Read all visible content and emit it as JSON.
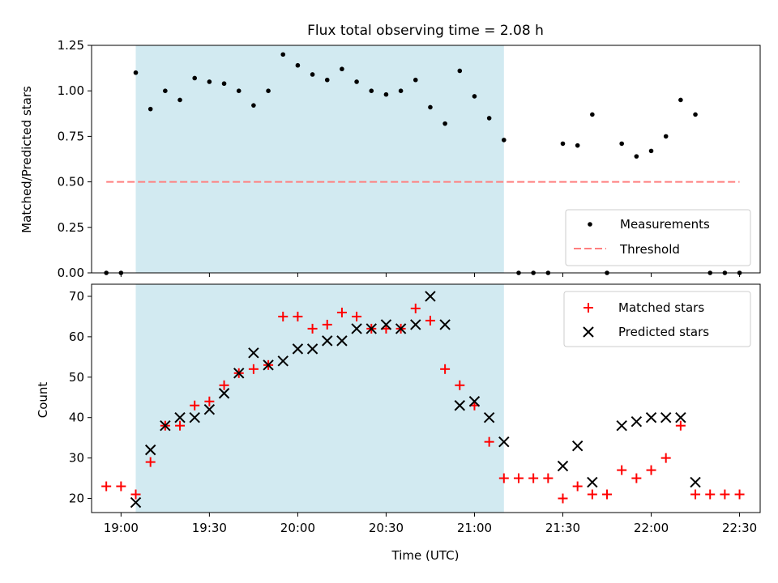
{
  "chart_data": [
    {
      "type": "scatter",
      "title": "Flux total observing time = 2.08 h",
      "ylabel": "Matched/Predicted stars",
      "xlabel": "",
      "xlim": [
        "18:50",
        "22:37"
      ],
      "ylim": [
        0,
        1.25
      ],
      "yticks": [
        "0.00",
        "0.25",
        "0.50",
        "0.75",
        "1.00",
        "1.25"
      ],
      "shaded_span": {
        "start": "19:05",
        "end": "21:10",
        "color": "#add8e6"
      },
      "threshold": {
        "name": "Threshold",
        "value": 0.5,
        "x": [
          "18:55",
          "22:30"
        ],
        "color": "#ff7f7f"
      },
      "series": [
        {
          "name": "Measurements",
          "color": "#000000",
          "x": [
            "18:55",
            "19:00",
            "19:05",
            "19:10",
            "19:15",
            "19:20",
            "19:25",
            "19:30",
            "19:35",
            "19:40",
            "19:45",
            "19:50",
            "19:55",
            "20:00",
            "20:05",
            "20:10",
            "20:15",
            "20:20",
            "20:25",
            "20:30",
            "20:35",
            "20:40",
            "20:45",
            "20:50",
            "20:55",
            "21:00",
            "21:05",
            "21:10",
            "21:15",
            "21:20",
            "21:25",
            "21:30",
            "21:35",
            "21:40",
            "21:45",
            "21:50",
            "21:55",
            "22:00",
            "22:05",
            "22:10",
            "22:15",
            "22:20",
            "22:25",
            "22:30"
          ],
          "y": [
            0,
            0,
            1.1,
            0.9,
            1.0,
            0.95,
            1.07,
            1.05,
            1.04,
            1.0,
            0.92,
            1.0,
            1.2,
            1.14,
            1.09,
            1.06,
            1.12,
            1.05,
            1.0,
            0.98,
            1.0,
            1.06,
            0.91,
            0.82,
            1.11,
            0.97,
            0.85,
            0.73,
            0,
            0,
            0,
            0.71,
            0.7,
            0.87,
            0,
            0.71,
            0.64,
            0.67,
            0.75,
            0.95,
            0.87,
            0,
            0,
            0
          ]
        }
      ],
      "legend": {
        "placement": "lower-right",
        "entries": [
          "Measurements",
          "Threshold"
        ]
      }
    },
    {
      "type": "scatter",
      "title": "",
      "xlabel": "Time (UTC)",
      "ylabel": "Count",
      "xlim": [
        "18:50",
        "22:37"
      ],
      "ylim": [
        16.5,
        73
      ],
      "xticks": [
        "19:00",
        "19:30",
        "20:00",
        "20:30",
        "21:00",
        "21:30",
        "22:00",
        "22:30"
      ],
      "yticks": [
        "20",
        "30",
        "40",
        "50",
        "60",
        "70"
      ],
      "shaded_span": {
        "start": "19:05",
        "end": "21:10",
        "color": "#add8e6"
      },
      "series": [
        {
          "name": "Matched stars",
          "marker": "+",
          "color": "#ff0000",
          "x": [
            "18:55",
            "19:00",
            "19:05",
            "19:10",
            "19:15",
            "19:20",
            "19:25",
            "19:30",
            "19:35",
            "19:40",
            "19:45",
            "19:50",
            "19:55",
            "20:00",
            "20:05",
            "20:10",
            "20:15",
            "20:20",
            "20:25",
            "20:30",
            "20:35",
            "20:40",
            "20:45",
            "20:50",
            "20:55",
            "21:00",
            "21:05",
            "21:10",
            "21:15",
            "21:20",
            "21:25",
            "21:30",
            "21:35",
            "21:40",
            "21:45",
            "21:50",
            "21:55",
            "22:00",
            "22:05",
            "22:10",
            "22:15",
            "22:20",
            "22:25",
            "22:30"
          ],
          "y": [
            23,
            23,
            21,
            29,
            38,
            38,
            43,
            44,
            48,
            51,
            52,
            53,
            65,
            65,
            62,
            63,
            66,
            65,
            62,
            62,
            62,
            67,
            64,
            52,
            48,
            43,
            34,
            25,
            25,
            25,
            25,
            20,
            23,
            21,
            21,
            27,
            25,
            27,
            30,
            38,
            21,
            21,
            21,
            21
          ]
        },
        {
          "name": "Predicted stars",
          "marker": "x",
          "color": "#000000",
          "x": [
            "19:05",
            "19:10",
            "19:15",
            "19:20",
            "19:25",
            "19:30",
            "19:35",
            "19:40",
            "19:45",
            "19:50",
            "19:55",
            "20:00",
            "20:05",
            "20:10",
            "20:15",
            "20:20",
            "20:25",
            "20:30",
            "20:35",
            "20:40",
            "20:45",
            "20:50",
            "20:55",
            "21:00",
            "21:05",
            "21:10",
            "21:30",
            "21:35",
            "21:40",
            "21:50",
            "21:55",
            "22:00",
            "22:05",
            "22:10",
            "22:15"
          ],
          "y": [
            19,
            32,
            38,
            40,
            40,
            42,
            46,
            51,
            56,
            53,
            54,
            57,
            57,
            59,
            59,
            62,
            62,
            63,
            62,
            63,
            70,
            63,
            43,
            44,
            40,
            34,
            28,
            33,
            24,
            38,
            39,
            40,
            40,
            40,
            24
          ]
        }
      ],
      "legend": {
        "placement": "upper-right",
        "entries": [
          "Matched stars",
          "Predicted stars"
        ]
      }
    }
  ]
}
